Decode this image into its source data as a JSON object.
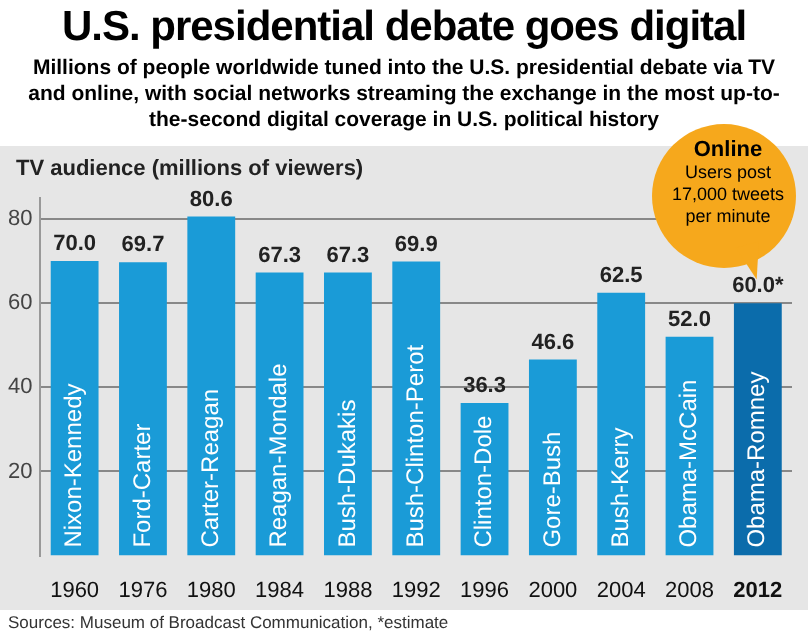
{
  "chart_data": {
    "type": "bar",
    "title": "U.S. presidential debate goes digital",
    "subtitle": "Millions of people worldwide tuned into the U.S. presidential debate via TV and online, with social networks streaming the exchange in the most up-to-the-second digital coverage in U.S. political history",
    "ylabel": "TV audience (millions of viewers)",
    "categories": [
      "1960",
      "1976",
      "1980",
      "1984",
      "1988",
      "1992",
      "1996",
      "2000",
      "2004",
      "2008",
      "2012"
    ],
    "values": [
      70.0,
      69.7,
      80.6,
      67.3,
      67.3,
      69.9,
      36.3,
      46.6,
      62.5,
      52.0,
      60.0
    ],
    "value_labels": [
      "70.0",
      "69.7",
      "80.6",
      "67.3",
      "67.3",
      "69.9",
      "36.3",
      "46.6",
      "62.5",
      "52.0",
      "60.0*"
    ],
    "colors": [
      "#1a9bd7",
      "#1a9bd7",
      "#1a9bd7",
      "#1a9bd7",
      "#1a9bd7",
      "#1a9bd7",
      "#1a9bd7",
      "#1a9bd7",
      "#1a9bd7",
      "#1a9bd7",
      "#0b6cab"
    ],
    "ylim": [
      0,
      85
    ],
    "yticks": [
      20,
      40,
      60,
      80
    ],
    "grid": "y",
    "legend": false,
    "annotations": [
      "Nixon-Kennedy",
      "Ford-Carter",
      "Carter-Reagan",
      "Reagan-Mondale",
      "Bush-Dukakis",
      "Bush-Clinton-Perot",
      "Clinton-Dole",
      "Gore-Bush",
      "Bush-Kerry",
      "Obama-McCain",
      "Obama-Romney",
      "Online",
      "Users post 17,000 tweets per minute",
      "Sources: Museum of Broadcast Communication, *estimate"
    ]
  }
}
